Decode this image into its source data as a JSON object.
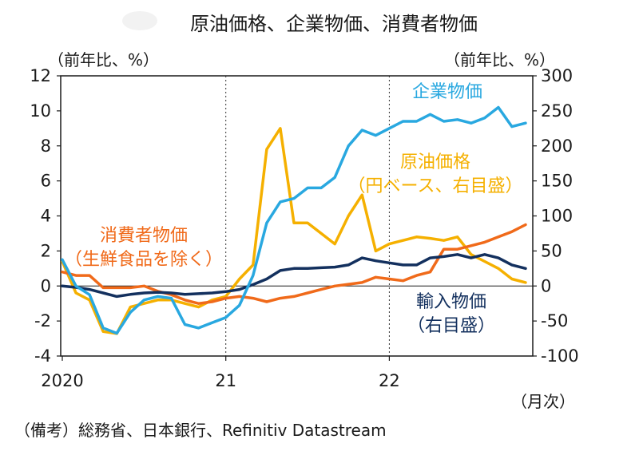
{
  "title": "原油価格、企業物価、消費者物価",
  "source_note": "（備考）総務省、日本銀行、Refinitiv Datastream",
  "chart_data": {
    "type": "line",
    "title": "原油価格、企業物価、消費者物価",
    "left_axis": {
      "label": "（前年比、%）",
      "range": [
        -4,
        12
      ],
      "ticks": [
        -4,
        -2,
        0,
        2,
        4,
        6,
        8,
        10,
        12
      ]
    },
    "right_axis": {
      "label": "（前年比、%）",
      "range": [
        -100,
        300
      ],
      "ticks": [
        -100,
        -50,
        0,
        50,
        100,
        150,
        200,
        250,
        300
      ]
    },
    "x_axis": {
      "unit_label": "（月次）",
      "tick_labels": [
        "2020",
        "21",
        "22"
      ],
      "tick_positions": [
        0,
        12,
        24
      ]
    },
    "grid": {
      "vertical_dotted_at": [
        12,
        24
      ]
    },
    "series": [
      {
        "name": "企業物価",
        "axis": "left",
        "color": "#29a8e0",
        "label_lines": [
          "企業物価"
        ],
        "x": [
          0,
          1,
          2,
          3,
          4,
          5,
          6,
          7,
          8,
          9,
          10,
          11,
          12,
          13,
          14,
          15,
          16,
          17,
          18,
          19,
          20,
          21,
          22,
          23,
          24,
          25,
          26,
          27,
          28,
          29,
          30,
          31,
          32,
          33,
          34
        ],
        "y": [
          1.5,
          0.0,
          -0.5,
          -2.4,
          -2.7,
          -1.5,
          -0.8,
          -0.6,
          -0.7,
          -2.2,
          -2.4,
          -2.1,
          -1.8,
          -1.1,
          0.6,
          3.6,
          4.8,
          5.0,
          5.6,
          5.6,
          6.2,
          8.0,
          8.9,
          8.6,
          9.0,
          9.4,
          9.4,
          9.8,
          9.4,
          9.5,
          9.3,
          9.6,
          10.2,
          9.1,
          9.3
        ]
      },
      {
        "name": "原油価格",
        "axis": "right",
        "color": "#f5b000",
        "label_lines": [
          "原油価格",
          "（円ベース、右目盛）"
        ],
        "x": [
          0,
          1,
          2,
          3,
          4,
          5,
          6,
          7,
          8,
          9,
          10,
          11,
          12,
          13,
          14,
          15,
          16,
          17,
          18,
          19,
          20,
          21,
          22,
          23,
          24,
          25,
          26,
          27,
          28,
          29,
          30,
          31,
          32,
          33,
          34
        ],
        "y": [
          35,
          -10,
          -20,
          -65,
          -68,
          -30,
          -25,
          -20,
          -20,
          -25,
          -30,
          -20,
          -15,
          10,
          30,
          195,
          225,
          90,
          90,
          75,
          60,
          100,
          130,
          50,
          60,
          65,
          70,
          68,
          65,
          70,
          45,
          35,
          25,
          10,
          5
        ]
      },
      {
        "name": "消費者物価",
        "axis": "left",
        "color": "#f06a1a",
        "label_lines": [
          "消費者物価",
          "（生鮮食品を除く）"
        ],
        "x": [
          0,
          1,
          2,
          3,
          4,
          5,
          6,
          7,
          8,
          9,
          10,
          11,
          12,
          13,
          14,
          15,
          16,
          17,
          18,
          19,
          20,
          21,
          22,
          23,
          24,
          25,
          26,
          27,
          28,
          29,
          30,
          31,
          32,
          33,
          34
        ],
        "y": [
          0.8,
          0.6,
          0.6,
          -0.1,
          -0.1,
          -0.1,
          0.0,
          -0.3,
          -0.5,
          -0.8,
          -1.0,
          -0.9,
          -0.7,
          -0.6,
          -0.7,
          -0.9,
          -0.7,
          -0.6,
          -0.4,
          -0.2,
          0.0,
          0.1,
          0.2,
          0.5,
          0.4,
          0.3,
          0.6,
          0.8,
          2.1,
          2.1,
          2.3,
          2.5,
          2.8,
          3.1,
          3.5
        ]
      },
      {
        "name": "輸入物価",
        "axis": "right",
        "color": "#13305e",
        "label_lines": [
          "輸入物価",
          "（右目盛）"
        ],
        "x": [
          0,
          1,
          2,
          3,
          4,
          5,
          6,
          7,
          8,
          9,
          10,
          11,
          12,
          13,
          14,
          15,
          16,
          17,
          18,
          19,
          20,
          21,
          22,
          23,
          24,
          25,
          26,
          27,
          28,
          29,
          30,
          31,
          32,
          33,
          34
        ],
        "y": [
          0,
          -2,
          -5,
          -10,
          -15,
          -12,
          -10,
          -9,
          -10,
          -12,
          -11,
          -10,
          -8,
          -5,
          2,
          10,
          22,
          25,
          25,
          26,
          27,
          30,
          40,
          36,
          33,
          30,
          30,
          40,
          42,
          45,
          40,
          45,
          40,
          30,
          25
        ]
      }
    ]
  }
}
